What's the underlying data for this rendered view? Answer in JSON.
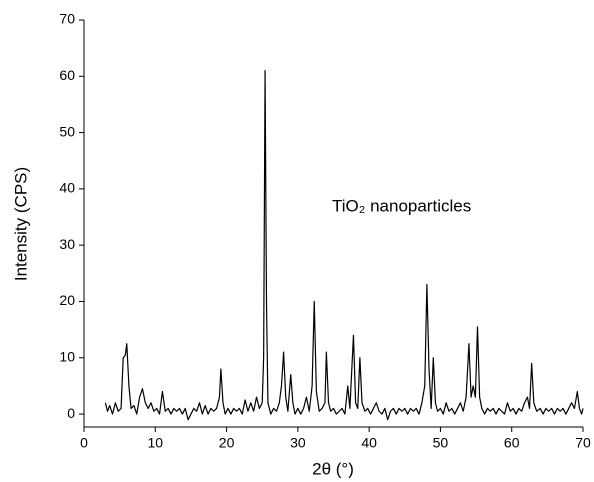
{
  "chart_data": {
    "type": "line",
    "annotation": "TiO₂ nanoparticles",
    "xlabel": "2θ (°)",
    "ylabel": "Intensity (CPS)",
    "xlim": [
      0,
      70
    ],
    "xticks": [
      0,
      10,
      20,
      30,
      40,
      50,
      60,
      70
    ],
    "ylim": [
      -2.3,
      70
    ],
    "yticks": [
      0,
      10,
      20,
      30,
      40,
      50,
      60,
      70
    ],
    "color": "#000000",
    "x": [
      3,
      3.3,
      3.6,
      4,
      4.4,
      4.8,
      5.2,
      5.5,
      5.8,
      6,
      6.3,
      6.6,
      7,
      7.4,
      7.8,
      8.2,
      8.6,
      9,
      9.4,
      9.8,
      10.2,
      10.6,
      11,
      11.4,
      11.8,
      12.2,
      12.6,
      13,
      13.4,
      13.8,
      14.2,
      14.6,
      15,
      15.4,
      15.8,
      16.2,
      16.6,
      17,
      17.4,
      17.8,
      18.2,
      18.6,
      19,
      19.2,
      19.5,
      19.8,
      20.2,
      20.6,
      21,
      21.4,
      21.8,
      22.2,
      22.6,
      23,
      23.4,
      23.8,
      24.2,
      24.6,
      25,
      25.2,
      25.4,
      25.6,
      25.8,
      26.2,
      26.6,
      27,
      27.4,
      27.7,
      28,
      28.3,
      28.6,
      29,
      29.3,
      29.6,
      30,
      30.4,
      30.8,
      31.2,
      31.6,
      32,
      32.3,
      32.6,
      33,
      33.4,
      33.8,
      34,
      34.3,
      34.6,
      35,
      35.4,
      35.8,
      36.2,
      36.6,
      37,
      37.3,
      37.8,
      38.1,
      38.4,
      38.7,
      39,
      39.4,
      39.8,
      40.2,
      40.6,
      41,
      41.4,
      41.8,
      42.2,
      42.6,
      43,
      43.4,
      43.8,
      44.2,
      44.6,
      45,
      45.4,
      45.8,
      46.2,
      46.6,
      47,
      47.4,
      47.8,
      48.1,
      48.4,
      48.7,
      49,
      49.3,
      49.6,
      50,
      50.4,
      50.8,
      51.2,
      51.6,
      52,
      52.4,
      52.8,
      53.2,
      53.6,
      54,
      54.3,
      54.6,
      54.9,
      55.2,
      55.5,
      55.8,
      56.2,
      56.6,
      57,
      57.4,
      57.8,
      58.2,
      58.6,
      59,
      59.4,
      59.8,
      60.2,
      60.6,
      61,
      61.4,
      61.8,
      62.2,
      62.5,
      62.8,
      63.1,
      63.5,
      64,
      64.4,
      64.8,
      65.2,
      65.6,
      66,
      66.4,
      66.8,
      67.2,
      67.6,
      68,
      68.4,
      68.8,
      69.2,
      69.5,
      69.8,
      70
    ],
    "values": [
      2,
      0.5,
      1.5,
      0,
      2,
      0.5,
      1,
      10,
      10.5,
      12.5,
      5,
      1,
      1.5,
      0,
      3,
      4.5,
      2,
      1,
      2,
      0.5,
      1,
      0,
      4,
      0.5,
      1,
      0,
      1,
      0.5,
      1,
      0,
      1,
      -1,
      0,
      1,
      0.5,
      2,
      0,
      1.5,
      0,
      1,
      0.5,
      1,
      3,
      8,
      2,
      0,
      1,
      0,
      1,
      0.5,
      1,
      0,
      2.5,
      0.5,
      2,
      0.5,
      3,
      1,
      2,
      10,
      61,
      20,
      2,
      0,
      1,
      0.5,
      2,
      5,
      11,
      3,
      0.5,
      7,
      2,
      0,
      1,
      0,
      1,
      3,
      0.5,
      5,
      20,
      4,
      0.5,
      1,
      2,
      11,
      2,
      0.5,
      1,
      0,
      0.5,
      1,
      0,
      5,
      1,
      14,
      2,
      1,
      10,
      2,
      0.5,
      1,
      0,
      1,
      2,
      0.5,
      0,
      1,
      -1,
      0.5,
      1,
      0,
      1,
      0.5,
      1,
      0,
      1,
      0.5,
      1,
      0,
      2,
      5,
      23,
      8,
      1,
      10,
      2,
      0.5,
      1,
      0,
      2,
      0.5,
      1,
      0,
      1,
      2,
      0.5,
      3,
      12.5,
      3,
      5,
      3,
      15.5,
      3,
      1,
      0,
      1,
      0.5,
      1,
      0,
      1,
      0.5,
      0,
      2,
      0.5,
      1,
      0,
      1,
      0.5,
      2,
      3,
      1,
      9,
      2,
      0.5,
      1,
      0,
      1,
      0.5,
      1,
      0,
      1,
      0.5,
      1,
      0,
      1,
      2,
      1,
      4,
      1,
      0,
      1
    ]
  }
}
